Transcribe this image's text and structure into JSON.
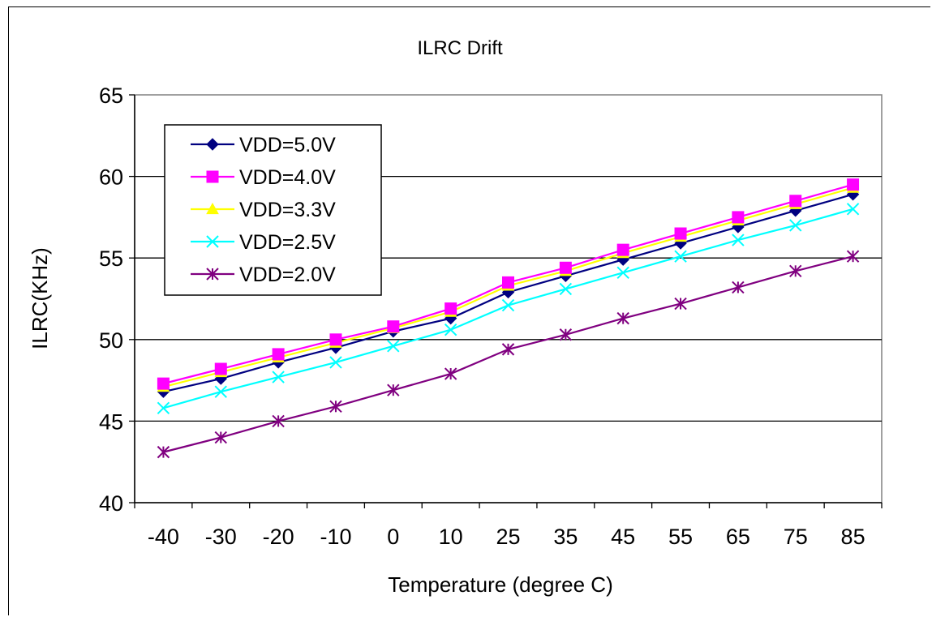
{
  "chart_data": {
    "type": "line",
    "title": "ILRC Drift",
    "xlabel": "Temperature (degree C)",
    "ylabel": "ILRC(KHz)",
    "categories": [
      "-40",
      "-30",
      "-20",
      "-10",
      "0",
      "10",
      "25",
      "35",
      "45",
      "55",
      "65",
      "75",
      "85"
    ],
    "ylim": [
      40,
      65
    ],
    "yticks": [
      "40",
      "45",
      "50",
      "55",
      "60",
      "65"
    ],
    "grid": "horizontal",
    "legend_position": "top-left",
    "series": [
      {
        "name": "VDD=5.0V",
        "color": "#000080",
        "marker": "diamond",
        "values": [
          46.8,
          47.6,
          48.6,
          49.5,
          50.5,
          51.3,
          52.9,
          53.9,
          54.9,
          55.9,
          56.9,
          57.9,
          58.9
        ]
      },
      {
        "name": "VDD=4.0V",
        "color": "#ff00ff",
        "marker": "square",
        "values": [
          47.3,
          48.2,
          49.1,
          50.0,
          50.8,
          51.9,
          53.5,
          54.4,
          55.5,
          56.5,
          57.5,
          58.5,
          59.5
        ]
      },
      {
        "name": "VDD=3.3V",
        "color": "#ffff00",
        "marker": "triangle",
        "values": [
          47.1,
          48.0,
          48.9,
          49.8,
          50.7,
          51.7,
          53.3,
          54.2,
          55.3,
          56.3,
          57.3,
          58.3,
          59.3
        ]
      },
      {
        "name": "VDD=2.5V",
        "color": "#00ffff",
        "marker": "x",
        "values": [
          45.8,
          46.8,
          47.7,
          48.6,
          49.6,
          50.6,
          52.1,
          53.1,
          54.1,
          55.1,
          56.1,
          57.0,
          58.0
        ]
      },
      {
        "name": "VDD=2.0V",
        "color": "#800080",
        "marker": "star",
        "values": [
          43.1,
          44.0,
          45.0,
          45.9,
          46.9,
          47.9,
          49.4,
          50.3,
          51.3,
          52.2,
          53.2,
          54.2,
          55.1
        ]
      }
    ]
  }
}
